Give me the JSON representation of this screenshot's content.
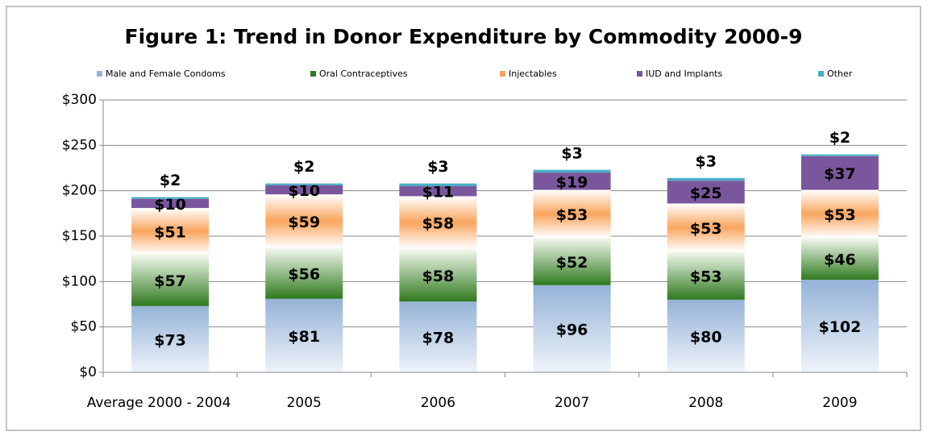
{
  "chart_data": {
    "type": "stacked_bar",
    "title": "Figure 1: Trend in Donor Expenditure by Commodity 2000-9",
    "categories": [
      "Average 2000 - 2004",
      "2005",
      "2006",
      "2007",
      "2008",
      "2009"
    ],
    "series": [
      {
        "name": "Male and Female Condoms",
        "color": "#95b3d7",
        "values": [
          73,
          81,
          78,
          96,
          80,
          102
        ],
        "value_labels": [
          "$73",
          "$81",
          "$78",
          "$96",
          "$80",
          "$102"
        ]
      },
      {
        "name": "Oral Contraceptives",
        "color": "#2f7a1f",
        "values": [
          57,
          56,
          58,
          52,
          53,
          46
        ],
        "value_labels": [
          "$57",
          "$56",
          "$58",
          "$52",
          "$53",
          "$46"
        ]
      },
      {
        "name": "Injectables",
        "color": "#f9a55e",
        "values": [
          51,
          59,
          58,
          53,
          53,
          53
        ],
        "value_labels": [
          "$51",
          "$59",
          "$58",
          "$53",
          "$53",
          "$53"
        ]
      },
      {
        "name": "IUD and Implants",
        "color": "#7a579c",
        "values": [
          10,
          10,
          11,
          19,
          25,
          37
        ],
        "value_labels": [
          "$10",
          "$10",
          "$11",
          "$19",
          "$25",
          "$37"
        ]
      },
      {
        "name": "Other",
        "color": "#4bacc6",
        "values": [
          2,
          2,
          3,
          3,
          3,
          2
        ],
        "value_labels": [
          "$2",
          "$2",
          "$3",
          "$3",
          "$3",
          "$2"
        ]
      }
    ],
    "ylim": [
      0,
      300
    ],
    "yticks": [
      {
        "value": 0,
        "label": "$0"
      },
      {
        "value": 50,
        "label": "$50"
      },
      {
        "value": 100,
        "label": "$100"
      },
      {
        "value": 150,
        "label": "$150"
      },
      {
        "value": 200,
        "label": "$200"
      },
      {
        "value": 250,
        "label": "$250"
      },
      {
        "value": 300,
        "label": "$300"
      }
    ],
    "grid": true,
    "legend": "top"
  }
}
